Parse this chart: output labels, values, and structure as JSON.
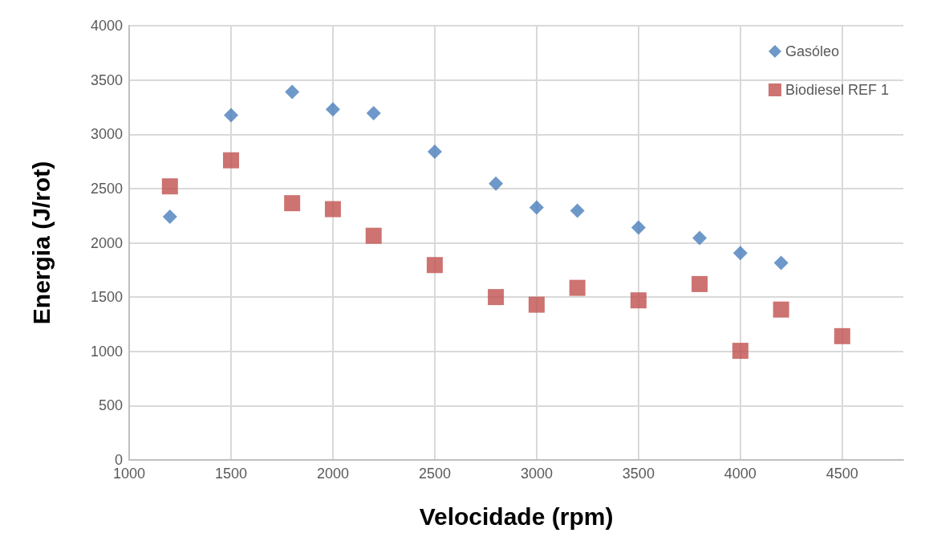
{
  "chart_data": {
    "type": "scatter",
    "xlabel": "Velocidade (rpm)",
    "ylabel": "Energia (J/rot)",
    "x": [
      1200,
      1500,
      1800,
      2000,
      2200,
      2500,
      2800,
      3000,
      3200,
      3500,
      3800,
      4000,
      4200,
      4500
    ],
    "series": [
      {
        "name": "Gasóleo",
        "color": "#4a7ebb",
        "marker": "diamond",
        "values": [
          2240,
          3175,
          3390,
          3230,
          3195,
          2840,
          2545,
          2325,
          2295,
          2140,
          2045,
          1905,
          1815,
          null
        ]
      },
      {
        "name": "Biodiesel REF 1",
        "color": "#c0504d",
        "marker": "square",
        "values": [
          2520,
          2760,
          2365,
          2310,
          2065,
          1795,
          1500,
          1430,
          1585,
          1470,
          1620,
          1005,
          1385,
          1140
        ]
      }
    ],
    "xlim": [
      1000,
      4800
    ],
    "xticks": [
      1000,
      1500,
      2000,
      2500,
      3000,
      3500,
      4000,
      4500
    ],
    "ylim": [
      0,
      4000
    ],
    "yticks": [
      0,
      500,
      1000,
      1500,
      2000,
      2500,
      3000,
      3500,
      4000
    ],
    "grid": true,
    "legend": "top right"
  }
}
